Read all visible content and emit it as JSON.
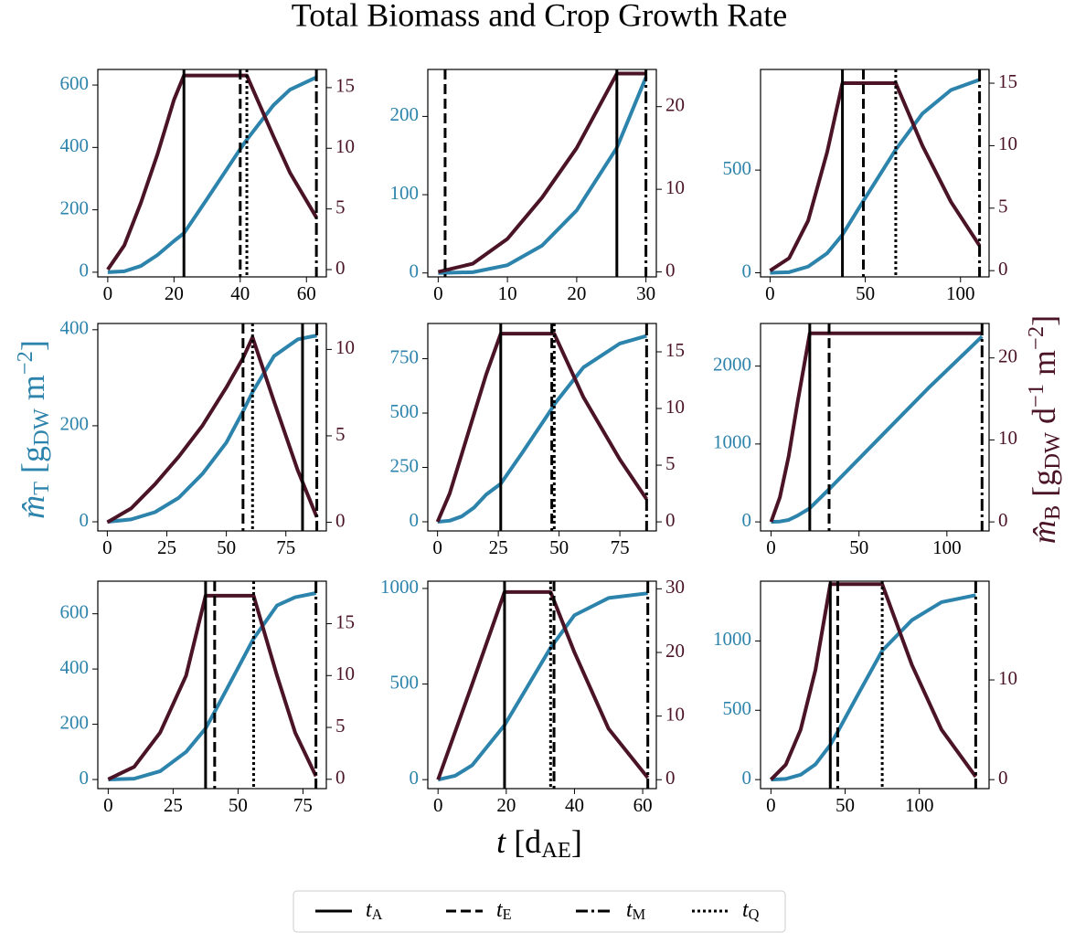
{
  "figure": {
    "title": "Total Biomass and Crop Growth Rate",
    "xlabel": [
      "t",
      " [d",
      "AE",
      "]"
    ],
    "ylabel": [
      "m̂",
      "T",
      " [g",
      "DW",
      " m",
      "−2",
      "]"
    ],
    "y2label": [
      "m̂",
      "B",
      " [g",
      "DW",
      " d",
      "−1",
      " m",
      "−2",
      "]"
    ],
    "legend": [
      {
        "label": [
          "t",
          "A"
        ],
        "style": "solid"
      },
      {
        "label": [
          "t",
          "E"
        ],
        "style": "dashed"
      },
      {
        "label": [
          "t",
          "M"
        ],
        "style": "dashdot"
      },
      {
        "label": [
          "t",
          "Q"
        ],
        "style": "dotted"
      }
    ]
  },
  "chart_data": [
    {
      "type": "line",
      "x": [
        0,
        5,
        10,
        15,
        20,
        23,
        30,
        40,
        42,
        50,
        55,
        63
      ],
      "series": [
        {
          "color": "#2c83ac",
          "values": [
            0,
            3,
            20,
            55,
            100,
            125,
            235,
            395,
            425,
            535,
            585,
            625
          ]
        },
        {
          "color": "#4a1426",
          "axis": "y2",
          "values": [
            0,
            2,
            5.5,
            9.5,
            14,
            16,
            16,
            16,
            16,
            11,
            8,
            4.3
          ]
        }
      ],
      "xlim": [
        -3,
        66
      ],
      "xticks": [
        0,
        20,
        40,
        60
      ],
      "ylim": [
        -15,
        650
      ],
      "yticks": [
        0,
        200,
        400,
        600
      ],
      "y2lim": [
        -0.6,
        16.5
      ],
      "y2ticks": [
        0,
        5,
        10,
        15
      ],
      "events": [
        23,
        40,
        63,
        42
      ]
    },
    {
      "type": "line",
      "x": [
        0,
        5,
        10,
        15,
        20,
        25.8,
        30
      ],
      "series": [
        {
          "color": "#2c83ac",
          "values": [
            0,
            1,
            10,
            35,
            80,
            160,
            250
          ]
        },
        {
          "color": "#4a1426",
          "axis": "y2",
          "values": [
            0,
            1,
            4,
            9,
            15,
            24,
            24
          ]
        }
      ],
      "xlim": [
        -1.5,
        31.5
      ],
      "xticks": [
        0,
        10,
        20,
        30
      ],
      "ylim": [
        -5,
        260
      ],
      "yticks": [
        0,
        100,
        200
      ],
      "y2lim": [
        -0.6,
        24.5
      ],
      "y2ticks": [
        0,
        10,
        20
      ],
      "events": [
        25.8,
        1,
        30,
        null
      ]
    },
    {
      "type": "line",
      "x": [
        0,
        10,
        20,
        30,
        38,
        49,
        66,
        80,
        95,
        110
      ],
      "series": [
        {
          "color": "#2c83ac",
          "values": [
            0,
            3,
            30,
            95,
            185,
            350,
            600,
            775,
            890,
            940
          ]
        },
        {
          "color": "#4a1426",
          "axis": "y2",
          "values": [
            0,
            1,
            4,
            9.5,
            15,
            15,
            15,
            10,
            5.5,
            2
          ]
        }
      ],
      "xlim": [
        -5,
        115
      ],
      "xticks": [
        0,
        50,
        100
      ],
      "ylim": [
        -20,
        990
      ],
      "yticks": [
        0,
        500
      ],
      "y2lim": [
        -0.5,
        16.1
      ],
      "y2ticks": [
        0,
        5,
        10,
        15
      ],
      "events": [
        38,
        49,
        110,
        66
      ]
    },
    {
      "type": "line",
      "x": [
        0,
        10,
        20,
        30,
        40,
        50,
        57,
        61,
        70,
        80,
        88
      ],
      "series": [
        {
          "color": "#2c83ac",
          "values": [
            0,
            5,
            20,
            50,
            100,
            165,
            230,
            270,
            345,
            380,
            388
          ]
        },
        {
          "color": "#4a1426",
          "axis": "y2",
          "values": [
            0,
            0.8,
            2.2,
            3.8,
            5.6,
            7.8,
            9.5,
            10.7,
            7,
            3,
            0.3
          ]
        }
      ],
      "xlim": [
        -4,
        92
      ],
      "xticks": [
        0,
        25,
        50,
        75
      ],
      "ylim": [
        -19,
        413
      ],
      "yticks": [
        0,
        200,
        400
      ],
      "y2lim": [
        -0.5,
        11.5
      ],
      "y2ticks": [
        0,
        5,
        10
      ],
      "events": [
        82,
        57,
        88,
        61
      ]
    },
    {
      "type": "line",
      "x": [
        0,
        5,
        10,
        15,
        20,
        26,
        35,
        47,
        48,
        60,
        75,
        86
      ],
      "series": [
        {
          "color": "#2c83ac",
          "values": [
            0,
            5,
            25,
            65,
            125,
            175,
            320,
            520,
            540,
            710,
            820,
            855
          ]
        },
        {
          "color": "#4a1426",
          "axis": "y2",
          "values": [
            0,
            2.5,
            6,
            9.5,
            13,
            16.6,
            16.6,
            16.6,
            16.6,
            11,
            5.5,
            2
          ]
        }
      ],
      "xlim": [
        -4,
        90
      ],
      "xticks": [
        0,
        25,
        50,
        75
      ],
      "ylim": [
        -42,
        912
      ],
      "yticks": [
        0,
        250,
        500,
        750
      ],
      "y2lim": [
        -0.8,
        17.5
      ],
      "y2ticks": [
        0,
        5,
        10,
        15
      ],
      "events": [
        26,
        47,
        86,
        48
      ]
    },
    {
      "type": "line",
      "x": [
        0,
        5,
        10,
        15,
        22,
        33,
        60,
        90,
        120
      ],
      "series": [
        {
          "color": "#2c83ac",
          "values": [
            0,
            5,
            25,
            80,
            175,
            420,
            1040,
            1730,
            2380
          ]
        },
        {
          "color": "#4a1426",
          "axis": "y2",
          "values": [
            0,
            3,
            8,
            14.5,
            23,
            23,
            23,
            23,
            23
          ]
        }
      ],
      "xlim": [
        -6,
        124
      ],
      "xticks": [
        0,
        50,
        100
      ],
      "ylim": [
        -116,
        2547
      ],
      "yticks": [
        0,
        1000,
        2000
      ],
      "y2lim": [
        -1.1,
        24.2
      ],
      "y2ticks": [
        0,
        10,
        20
      ],
      "events": [
        22,
        33,
        120,
        null
      ]
    },
    {
      "type": "line",
      "x": [
        0,
        10,
        20,
        30,
        37.5,
        41,
        56,
        65,
        72,
        80
      ],
      "series": [
        {
          "color": "#2c83ac",
          "values": [
            0,
            3,
            30,
            100,
            185,
            245,
            510,
            630,
            660,
            675
          ]
        },
        {
          "color": "#4a1426",
          "axis": "y2",
          "values": [
            0,
            1.2,
            4.5,
            10,
            17.7,
            17.7,
            17.7,
            10,
            4.5,
            0.3
          ]
        }
      ],
      "xlim": [
        -4,
        84
      ],
      "xticks": [
        0,
        25,
        50,
        75
      ],
      "ylim": [
        -33,
        718
      ],
      "yticks": [
        0,
        200,
        400,
        600
      ],
      "y2lim": [
        -0.9,
        19.1
      ],
      "y2ticks": [
        0,
        5,
        10,
        15
      ],
      "events": [
        37.5,
        41,
        80,
        56
      ]
    },
    {
      "type": "line",
      "x": [
        0,
        5,
        10,
        19.5,
        25,
        33,
        40,
        50,
        61.5
      ],
      "series": [
        {
          "color": "#2c83ac",
          "values": [
            0,
            20,
            75,
            285,
            450,
            690,
            860,
            950,
            975
          ]
        },
        {
          "color": "#4a1426",
          "axis": "y2",
          "values": [
            0,
            7.5,
            15,
            29.5,
            29.5,
            29.5,
            20,
            8,
            0.3
          ]
        }
      ],
      "xlim": [
        -3,
        64
      ],
      "xticks": [
        0,
        20,
        40,
        60
      ],
      "ylim": [
        -47,
        1038
      ],
      "yticks": [
        0,
        500,
        1000
      ],
      "y2lim": [
        -1.4,
        31.2
      ],
      "y2ticks": [
        0,
        10,
        20,
        30
      ],
      "events": [
        19.5,
        34,
        61.5,
        33
      ]
    },
    {
      "type": "line",
      "x": [
        0,
        10,
        20,
        30,
        40,
        45,
        60,
        75,
        95,
        115,
        138
      ],
      "series": [
        {
          "color": "#2c83ac",
          "values": [
            0,
            5,
            35,
            110,
            250,
            345,
            640,
            930,
            1150,
            1280,
            1330
          ]
        },
        {
          "color": "#4a1426",
          "axis": "y2",
          "values": [
            0,
            1.5,
            5,
            11,
            19.6,
            19.6,
            19.6,
            19.6,
            11.5,
            5,
            0.3
          ]
        }
      ],
      "xlim": [
        -7,
        147
      ],
      "xticks": [
        0,
        50,
        100
      ],
      "ylim": [
        -65,
        1431
      ],
      "yticks": [
        0,
        500,
        1000
      ],
      "y2lim": [
        -0.9,
        19.9
      ],
      "y2ticks": [
        0,
        10
      ],
      "events": [
        40,
        45,
        138,
        75
      ]
    }
  ]
}
